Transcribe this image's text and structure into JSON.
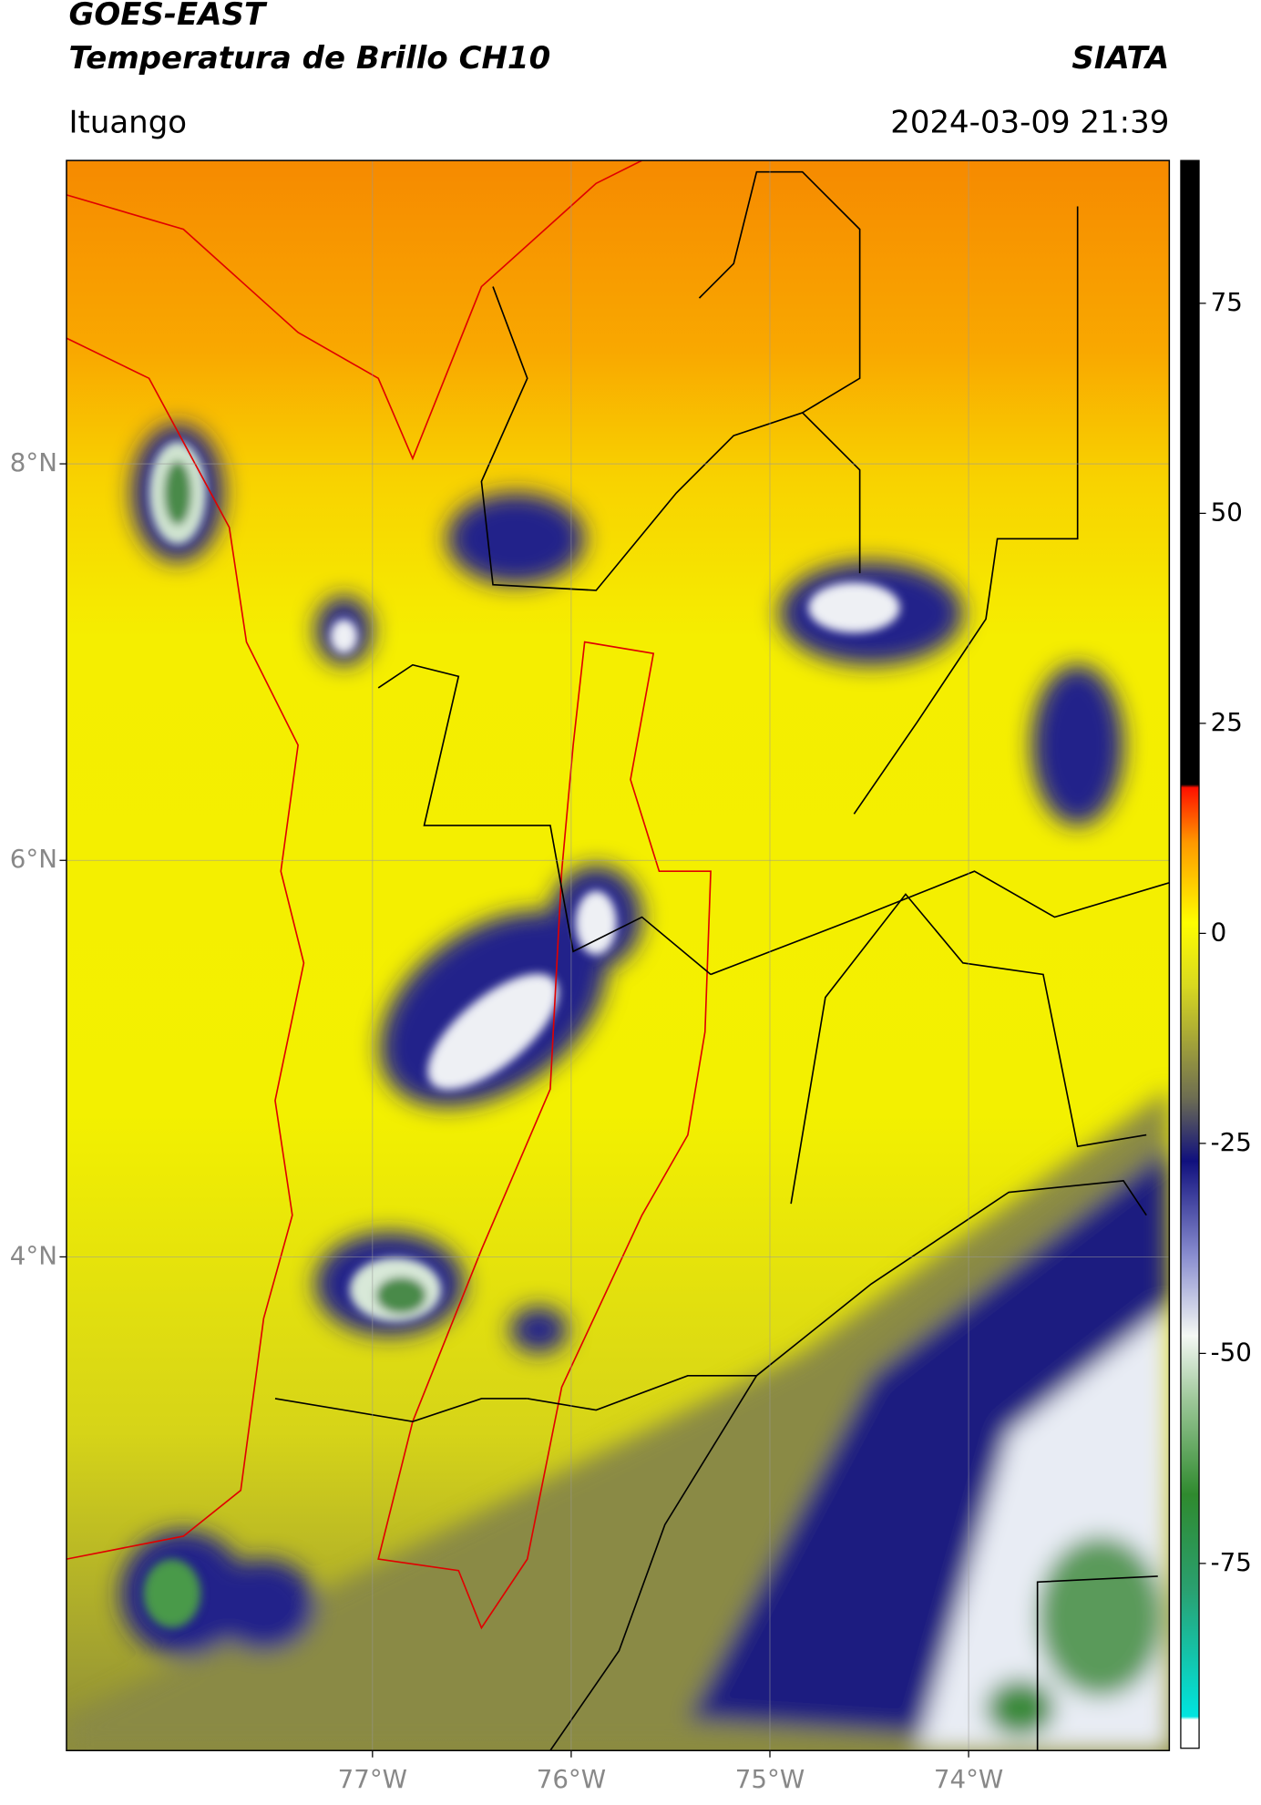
{
  "header": {
    "source": "GOES-EAST",
    "title": "Temperatura de Brillo CH10",
    "brand": "SIATA",
    "location": "Ituango",
    "datetime": "2024-03-09 21:39"
  },
  "map": {
    "xlim": [
      -78.54,
      -72.99
    ],
    "ylim": [
      1.51,
      9.53
    ],
    "xticks": [
      {
        "value": -77,
        "label": "77°W"
      },
      {
        "value": -76,
        "label": "76°W"
      },
      {
        "value": -75,
        "label": "75°W"
      },
      {
        "value": -74,
        "label": "74°W"
      }
    ],
    "yticks": [
      {
        "value": 8,
        "label": "8°N"
      },
      {
        "value": 6,
        "label": "6°N"
      },
      {
        "value": 4,
        "label": "4°N"
      }
    ],
    "grid": true,
    "colorbar": {
      "clim": [
        -97,
        92
      ],
      "ticks": [
        -75,
        -50,
        -25,
        0,
        25,
        50,
        75
      ]
    }
  }
}
